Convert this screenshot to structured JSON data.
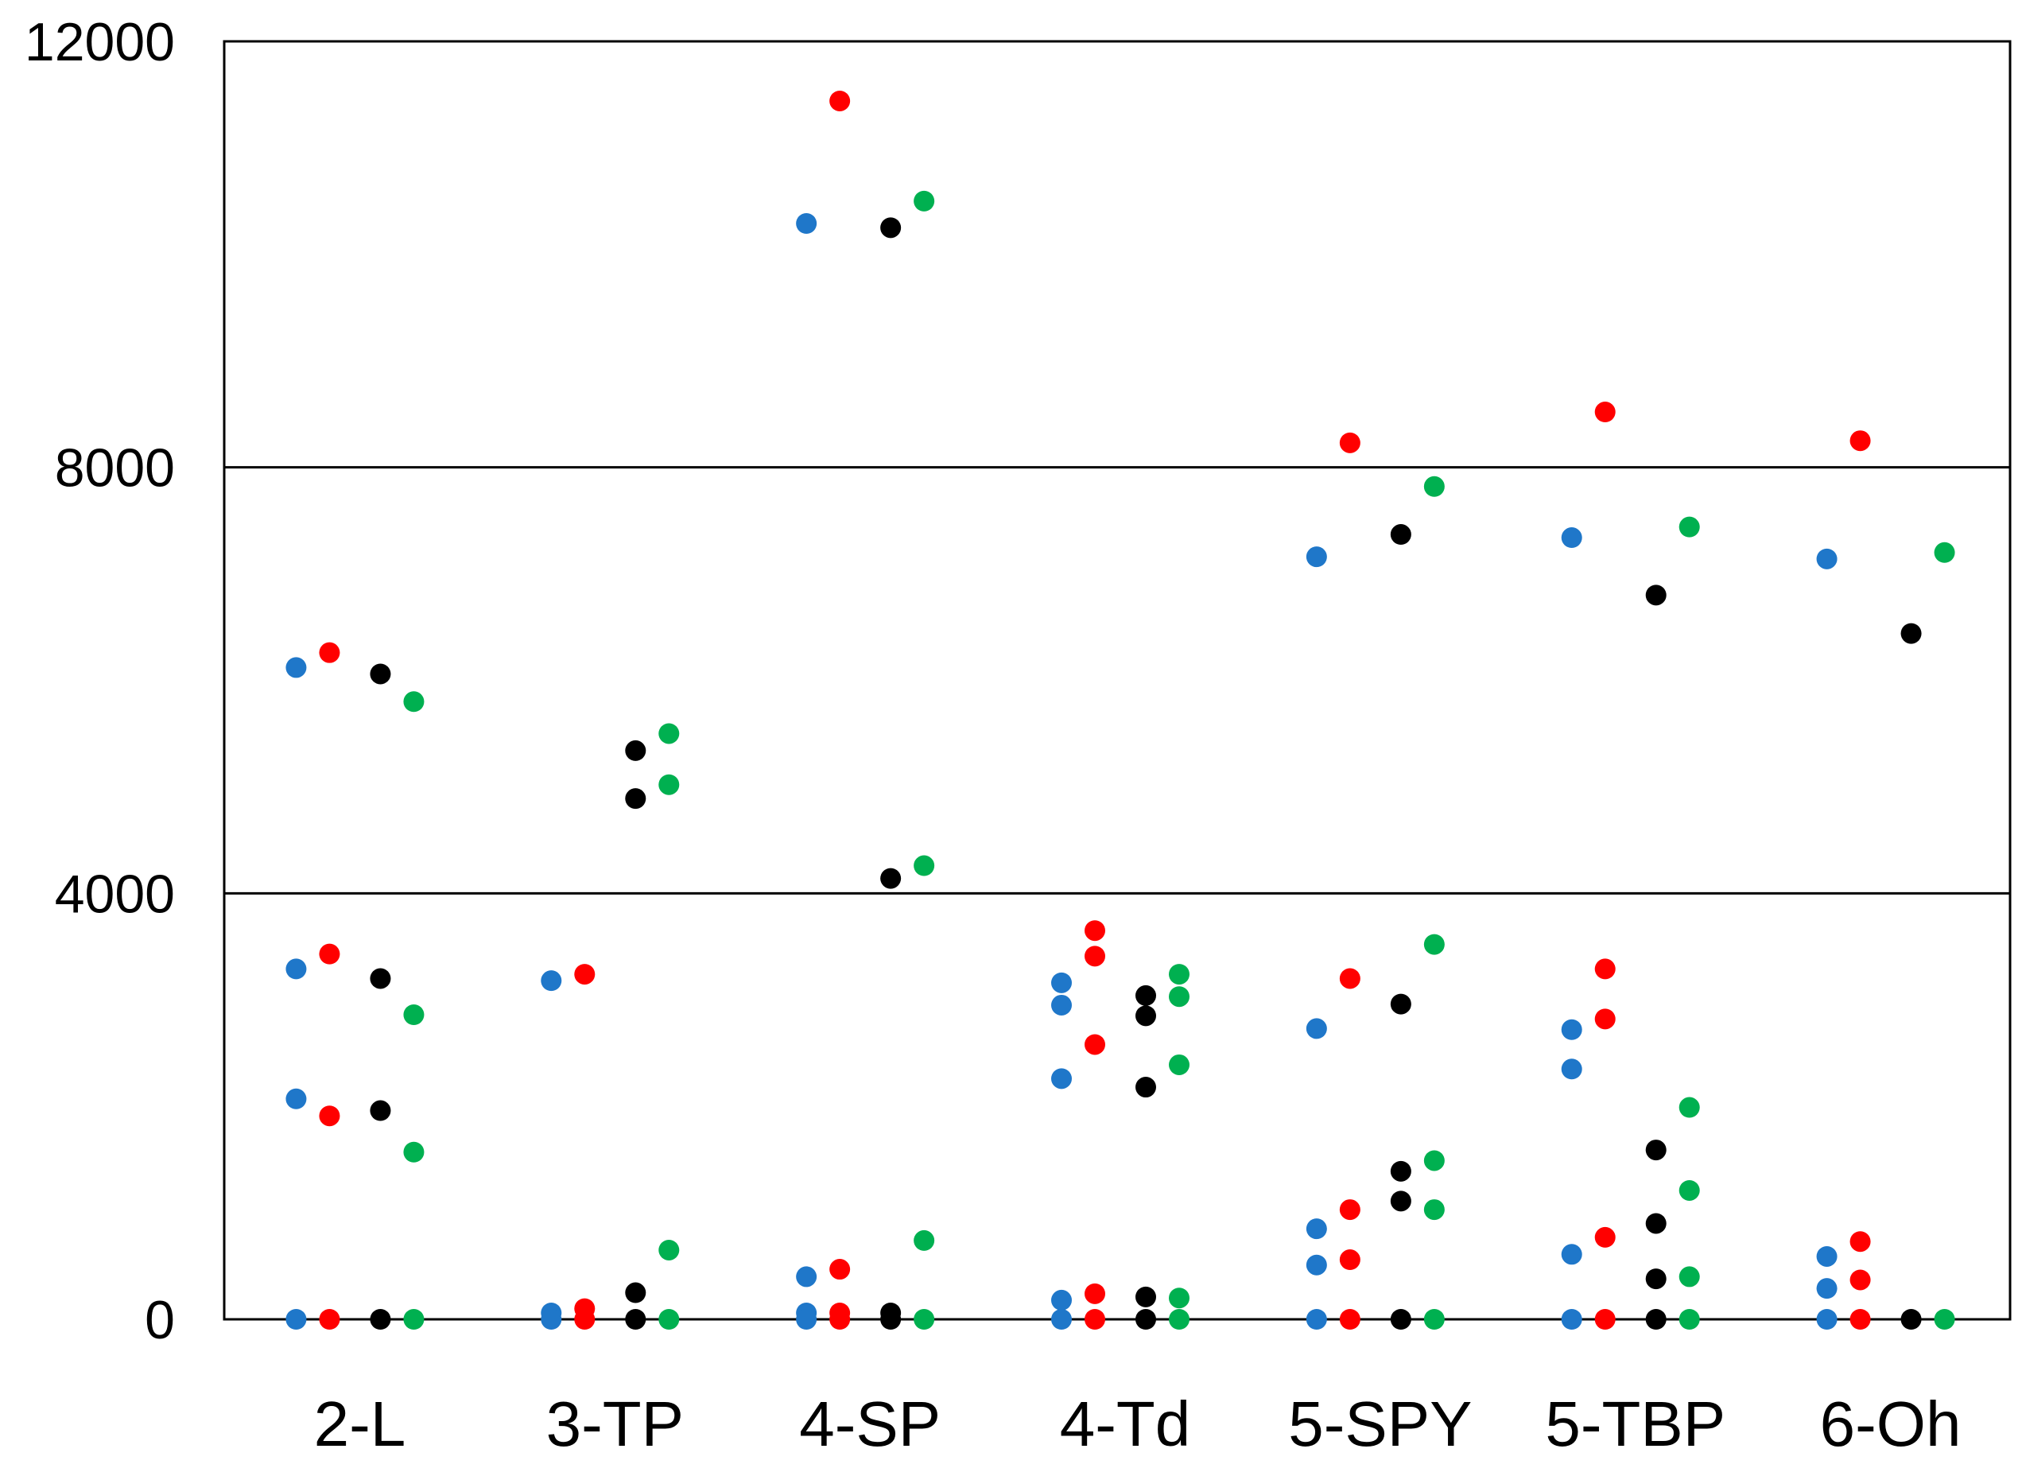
{
  "chart_data": {
    "type": "scatter",
    "title": "",
    "xlabel": "",
    "ylabel": "",
    "categories": [
      "2-L",
      "3-TP",
      "4-SP",
      "4-Td",
      "5-SPY",
      "5-TBP",
      "6-Oh"
    ],
    "ylim": [
      0,
      12000
    ],
    "yticks": [
      0,
      4000,
      8000,
      12000
    ],
    "grid": "horizontal at 4000 and 8000",
    "legend": "none",
    "series": [
      {
        "color": "#1f77c9",
        "values": [
          [
            6120,
            3290,
            2070,
            0
          ],
          [
            3180,
            60,
            0
          ],
          [
            10290,
            400,
            60,
            0
          ],
          [
            3160,
            2950,
            2260,
            180,
            0
          ],
          [
            7160,
            2730,
            850,
            510,
            0
          ],
          [
            7340,
            2720,
            2350,
            610,
            0
          ],
          [
            7140,
            590,
            290,
            0
          ]
        ]
      },
      {
        "color": "#ff0000",
        "values": [
          [
            6260,
            3430,
            1910,
            0
          ],
          [
            3240,
            100,
            0
          ],
          [
            11440,
            470,
            60,
            0
          ],
          [
            3650,
            3410,
            2580,
            240,
            0
          ],
          [
            8230,
            3200,
            1030,
            560,
            0
          ],
          [
            8520,
            3290,
            2820,
            770,
            0
          ],
          [
            8250,
            730,
            370,
            0
          ]
        ]
      },
      {
        "color": "#000000",
        "values": [
          [
            6060,
            3200,
            1960,
            0
          ],
          [
            5340,
            4890,
            250,
            0
          ],
          [
            10250,
            4140,
            60,
            0
          ],
          [
            3040,
            2850,
            2180,
            210,
            0
          ],
          [
            7370,
            2960,
            1390,
            1110,
            0
          ],
          [
            6800,
            1590,
            900,
            380,
            0
          ],
          [
            6440,
            0
          ]
        ]
      },
      {
        "color": "#00b050",
        "values": [
          [
            5800,
            2860,
            1570,
            0
          ],
          [
            5500,
            5020,
            650,
            0
          ],
          [
            10500,
            4260,
            740,
            0
          ],
          [
            3240,
            3030,
            2390,
            200,
            0
          ],
          [
            7820,
            3520,
            1490,
            1030,
            0
          ],
          [
            7440,
            1990,
            1210,
            400,
            0
          ],
          [
            7200,
            0
          ]
        ]
      }
    ]
  }
}
